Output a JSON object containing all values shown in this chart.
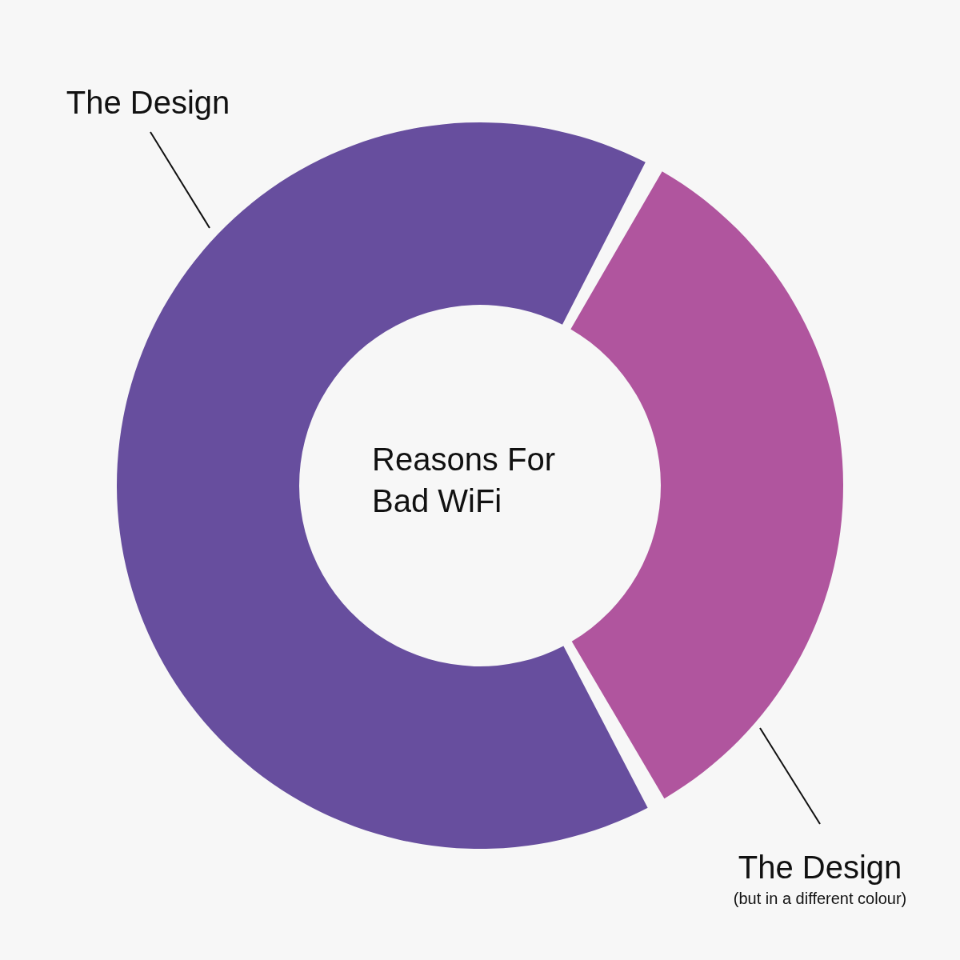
{
  "chart_data": {
    "type": "donut",
    "title": "Reasons For Bad WiFi",
    "categories": [
      "The Design",
      "The Design\n(but in a different colour)"
    ],
    "values": [
      66,
      34
    ],
    "colors": [
      "#674e9e",
      "#b0559e"
    ],
    "legend": false
  }
}
